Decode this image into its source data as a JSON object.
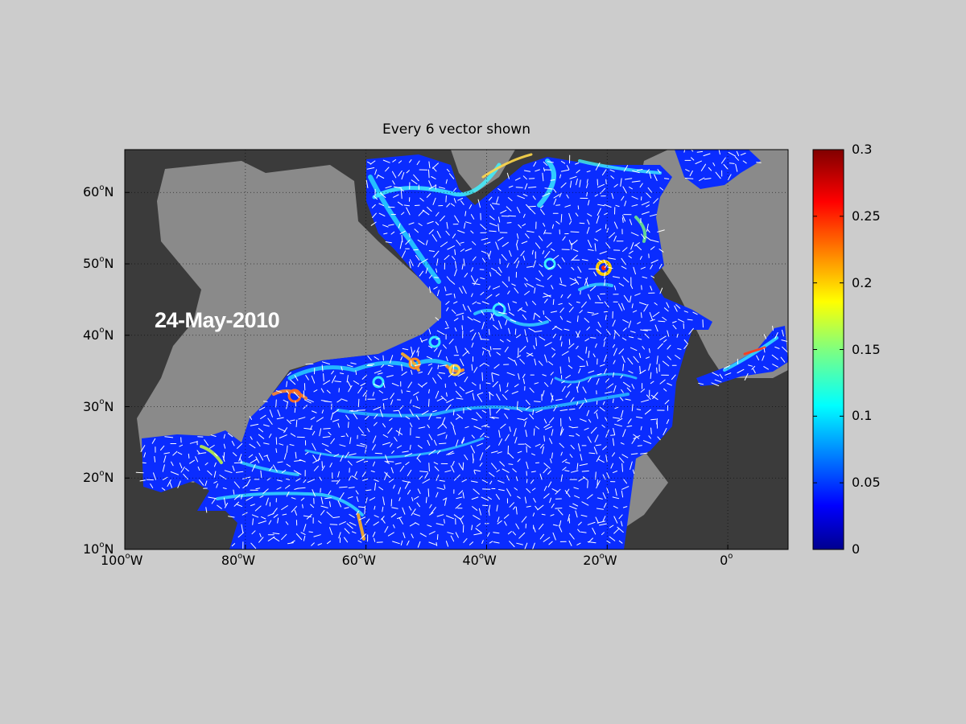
{
  "map": {
    "title": "Every 6 vector shown",
    "date": "24-May-2010",
    "projection": "equirectangular",
    "lon_range": [
      -100,
      10
    ],
    "lat_range": [
      10,
      66
    ],
    "grid": true,
    "x_ticks": [
      {
        "deg": "100",
        "hemi": "W",
        "lon": -100
      },
      {
        "deg": "80",
        "hemi": "W",
        "lon": -80
      },
      {
        "deg": "60",
        "hemi": "W",
        "lon": -60
      },
      {
        "deg": "40",
        "hemi": "W",
        "lon": -40
      },
      {
        "deg": "20",
        "hemi": "W",
        "lon": -20
      },
      {
        "deg": "0",
        "hemi": "",
        "lon": 0
      }
    ],
    "y_ticks": [
      {
        "deg": "60",
        "hemi": "N",
        "lat": 60
      },
      {
        "deg": "50",
        "hemi": "N",
        "lat": 50
      },
      {
        "deg": "40",
        "hemi": "N",
        "lat": 40
      },
      {
        "deg": "30",
        "hemi": "N",
        "lat": 30
      },
      {
        "deg": "20",
        "hemi": "N",
        "lat": 20
      },
      {
        "deg": "10",
        "hemi": "N",
        "lat": 10
      }
    ],
    "colors": {
      "land": "#3b3b3b",
      "shelf": "#8a8a8a",
      "background": "#cccccc",
      "vectors": "#ffffff"
    }
  },
  "colorbar": {
    "colormap": "jet",
    "min": 0,
    "max": 0.3,
    "ticks": [
      "0",
      "0.05",
      "0.1",
      "0.15",
      "0.2",
      "0.25",
      "0.3"
    ]
  }
}
